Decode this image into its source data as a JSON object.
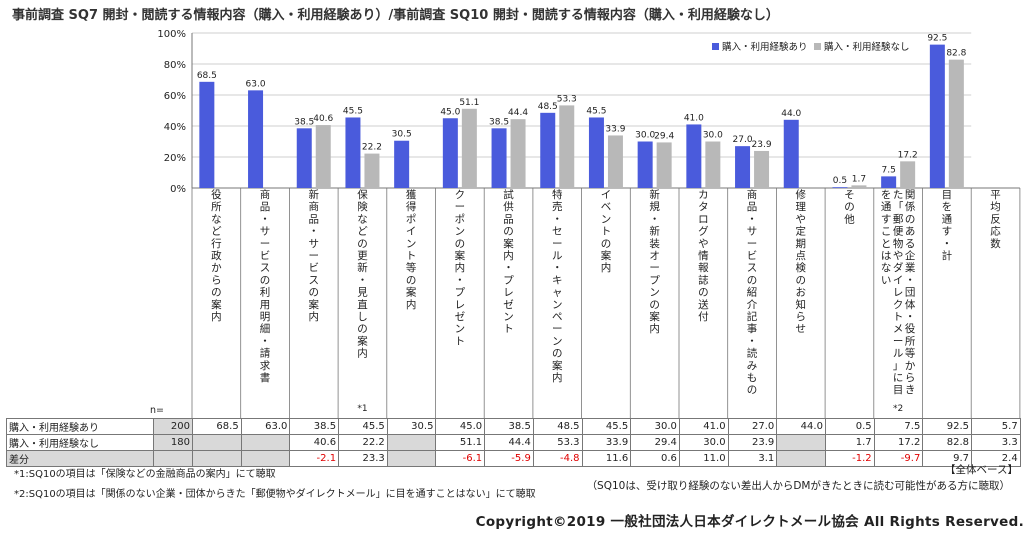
{
  "title": "事前調査 SQ7 開封・閲読する情報内容（購入・利用経験あり）/事前調査 SQ10 開封・閲読する情報内容（購入・利用経験なし）",
  "chart_data": {
    "type": "bar",
    "title": "事前調査 SQ7 開封・閲読する情報内容（購入・利用経験あり）/事前調査 SQ10 開封・閲読する情報内容（購入・利用経験なし）",
    "ylim": [
      0,
      100
    ],
    "yticks": [
      "0%",
      "20%",
      "40%",
      "60%",
      "80%",
      "100%"
    ],
    "legend": "top-right",
    "colors": {
      "series1": "#4a5bdc",
      "series2": "#b8b8b8"
    },
    "categories": [
      {
        "label": "役所など行政からの案内",
        "note": ""
      },
      {
        "label": "商品・サービスの利用明細・請求書",
        "note": ""
      },
      {
        "label": "新商品・サービスの案内",
        "note": ""
      },
      {
        "label": "保険などの更新・見直しの案内",
        "note": "*1"
      },
      {
        "label": "獲得ポイント等の案内",
        "note": ""
      },
      {
        "label": "クーポンの案内・プレゼント",
        "note": ""
      },
      {
        "label": "試供品の案内・プレゼント",
        "note": ""
      },
      {
        "label": "特売・セール・キャンペーンの案内",
        "note": ""
      },
      {
        "label": "イベントの案内",
        "note": ""
      },
      {
        "label": "新規・新装オープンの案内",
        "note": ""
      },
      {
        "label": "カタログや情報誌の送付",
        "note": ""
      },
      {
        "label": "商品・サービスの紹介記事・読みもの",
        "note": ""
      },
      {
        "label": "修理や定期点検のお知らせ",
        "note": ""
      },
      {
        "label": "その他",
        "note": ""
      },
      {
        "label": "関係のある企業・団体・役所等からきた「郵便物やダイレクトメール」に目を通すことはない",
        "note": "*2"
      },
      {
        "label": "目を通す・計",
        "note": ""
      },
      {
        "label": "平均反応数",
        "note": ""
      }
    ],
    "series": [
      {
        "name": "購入・利用経験あり",
        "values": [
          68.5,
          63.0,
          38.5,
          45.5,
          30.5,
          45.0,
          38.5,
          48.5,
          45.5,
          30.0,
          41.0,
          27.0,
          44.0,
          0.5,
          7.5,
          92.5,
          null
        ]
      },
      {
        "name": "購入・利用経験なし",
        "values": [
          null,
          null,
          40.6,
          22.2,
          null,
          51.1,
          44.4,
          53.3,
          33.9,
          29.4,
          30.0,
          23.9,
          null,
          1.7,
          17.2,
          82.8,
          null
        ]
      }
    ]
  },
  "table": {
    "n_label": "n=",
    "rows": [
      {
        "label": "購入・利用経験あり",
        "n": "200",
        "cells": [
          "68.5",
          "63.0",
          "38.5",
          "45.5",
          "30.5",
          "45.0",
          "38.5",
          "48.5",
          "45.5",
          "30.0",
          "41.0",
          "27.0",
          "44.0",
          "0.5",
          "7.5",
          "92.5",
          "5.7"
        ]
      },
      {
        "label": "購入・利用経験なし",
        "n": "180",
        "cells": [
          "",
          "",
          "40.6",
          "22.2",
          "",
          "51.1",
          "44.4",
          "53.3",
          "33.9",
          "29.4",
          "30.0",
          "23.9",
          "",
          "1.7",
          "17.2",
          "82.8",
          "3.3"
        ]
      },
      {
        "label": "差分",
        "n": "",
        "cells": [
          "",
          "",
          "-2.1",
          "23.3",
          "",
          "-6.1",
          "-5.9",
          "-4.8",
          "11.6",
          "0.6",
          "11.0",
          "3.1",
          "",
          "-1.2",
          "-9.7",
          "9.7",
          "2.4"
        ]
      }
    ]
  },
  "notes": [
    "*1:SQ10の項目は「保険などの金融商品の案内」にて聴取",
    "*2:SQ10の項目は「関係のない企業・団体からきた「郵便物やダイレクトメール」に目を通すことはない」にて聴取"
  ],
  "base_label": "【全体ベース】",
  "base_note": "（SQ10は、受け取り経験のない差出人からDMがきたときに読む可能性がある方に聴取）",
  "copyright": "Copyright©2019 一般社団法人日本ダイレクトメール協会 All Rights Reserved."
}
